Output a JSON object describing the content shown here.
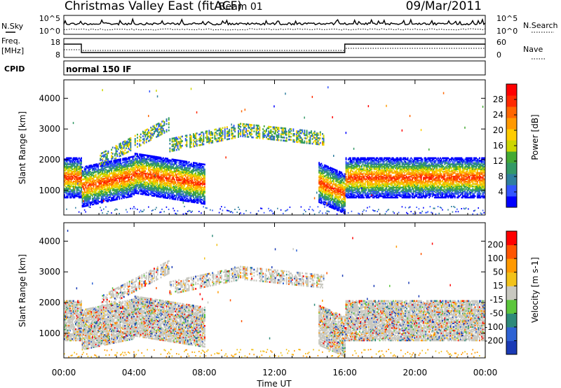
{
  "header": {
    "title": "Christmas Valley East (fitACF)",
    "beam": "Beam 01",
    "date": "09/Mar/2011"
  },
  "top_panels": {
    "nsky_label": "N.Sky",
    "nsky_ticks": [
      "10^5",
      "10^0"
    ],
    "nsearch_label": "N.Search",
    "nsearch_ticks": [
      "10^5",
      "10^0"
    ],
    "freq_label_1": "Freq.",
    "freq_label_2": "[MHz]",
    "freq_ticks": [
      "18",
      "8"
    ],
    "nave_label": "Nave",
    "nave_ticks": [
      "60",
      "0"
    ],
    "cpid_label": "CPID",
    "cpid_text": "normal 150 IF"
  },
  "chart_data": [
    {
      "type": "heatmap",
      "title": "Power",
      "ylabel": "Slant Range [km]",
      "ylim": [
        200,
        4600
      ],
      "yticks": [
        "4000",
        "3000",
        "2000",
        "1000"
      ],
      "colorbar_label": "Power [dB]",
      "colorbar_ticks": [
        "28",
        "24",
        "20",
        "16",
        "12",
        "8",
        "4"
      ],
      "colorbar_colors": [
        "#0000ff",
        "#3355ff",
        "#2f7f9f",
        "#339966",
        "#44aa33",
        "#ccd600",
        "#ffcc00",
        "#ff9900",
        "#ff6600",
        "#ff2a00",
        "#ff0000"
      ]
    },
    {
      "type": "heatmap",
      "title": "Velocity",
      "ylabel": "Slant Range [km]",
      "ylim": [
        200,
        4600
      ],
      "yticks": [
        "4000",
        "3000",
        "2000",
        "1000"
      ],
      "colorbar_label": "Velocity [m s-1]",
      "colorbar_ticks": [
        "200",
        "100",
        "50",
        "15",
        "-15",
        "-50",
        "-100",
        "-200"
      ],
      "colorbar_colors": [
        "#1a3ab5",
        "#2e63d4",
        "#2e8a7a",
        "#5cc63c",
        "#c8c8c0",
        "#f2c21a",
        "#ff9900",
        "#ff5500",
        "#ff0000"
      ]
    }
  ],
  "xaxis": {
    "label": "Time UT",
    "ticks": [
      "00:00",
      "04:00",
      "08:00",
      "12:00",
      "16:00",
      "20:00",
      "00:00"
    ]
  }
}
